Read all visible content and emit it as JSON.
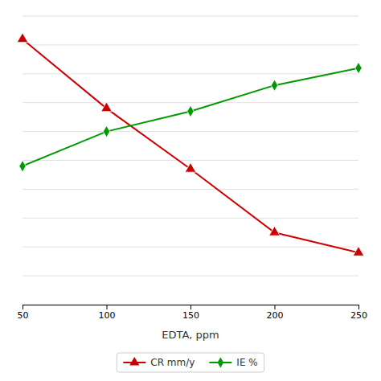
{
  "chart_data": {
    "type": "line",
    "x": [
      50,
      100,
      150,
      200,
      250
    ],
    "series": [
      {
        "name": "CR mm/y",
        "color": "#cc0000",
        "marker": "triangle",
        "values": [
          0.92,
          0.68,
          0.47,
          0.25,
          0.18
        ]
      },
      {
        "name": "IE %",
        "color": "#009900",
        "marker": "diamond",
        "values": [
          0.48,
          0.6,
          0.67,
          0.76,
          0.82
        ]
      }
    ],
    "xlabel": "EDTA, ppm",
    "xlim": [
      50,
      250
    ],
    "xticks": [
      50,
      100,
      150,
      200,
      250
    ],
    "ylim": [
      0.0,
      1.0
    ],
    "yticks": [
      0,
      0.1,
      0.2,
      0.3,
      0.4,
      0.5,
      0.6,
      0.7,
      0.8,
      0.9,
      1.0
    ],
    "grid": true,
    "tick_labels": "x",
    "legend": "bottom"
  }
}
